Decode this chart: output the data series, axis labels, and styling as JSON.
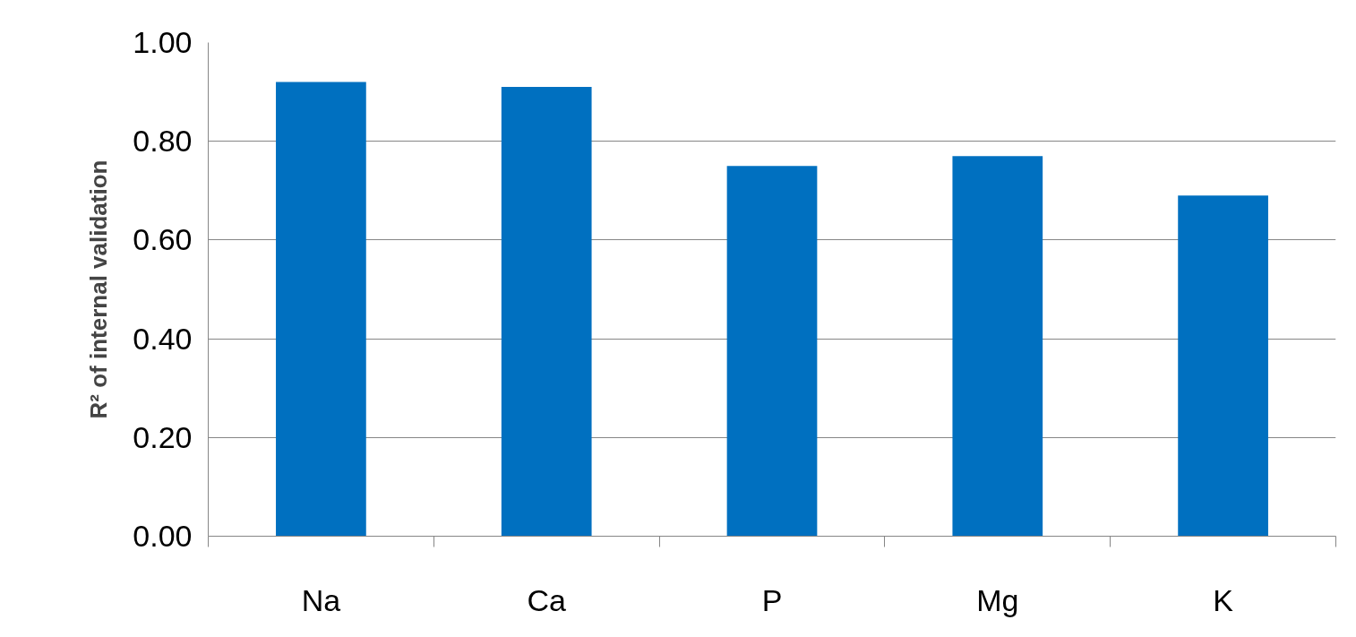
{
  "chart_data": {
    "type": "bar",
    "ylabel": "R² of internal validation",
    "categories": [
      "Na",
      "Ca",
      "P",
      "Mg",
      "K"
    ],
    "values": [
      0.92,
      0.91,
      0.75,
      0.77,
      0.69
    ],
    "color": "#0070c0",
    "ylim": [
      0,
      1
    ],
    "yticks": [
      {
        "value": 0,
        "label": "0.00"
      },
      {
        "value": 0.2,
        "label": "0.20"
      },
      {
        "value": 0.4,
        "label": "0.40"
      },
      {
        "value": 0.6,
        "label": "0.60"
      },
      {
        "value": 0.8,
        "label": "0.80"
      },
      {
        "value": 1,
        "label": "1.00"
      }
    ],
    "grid": "y"
  }
}
